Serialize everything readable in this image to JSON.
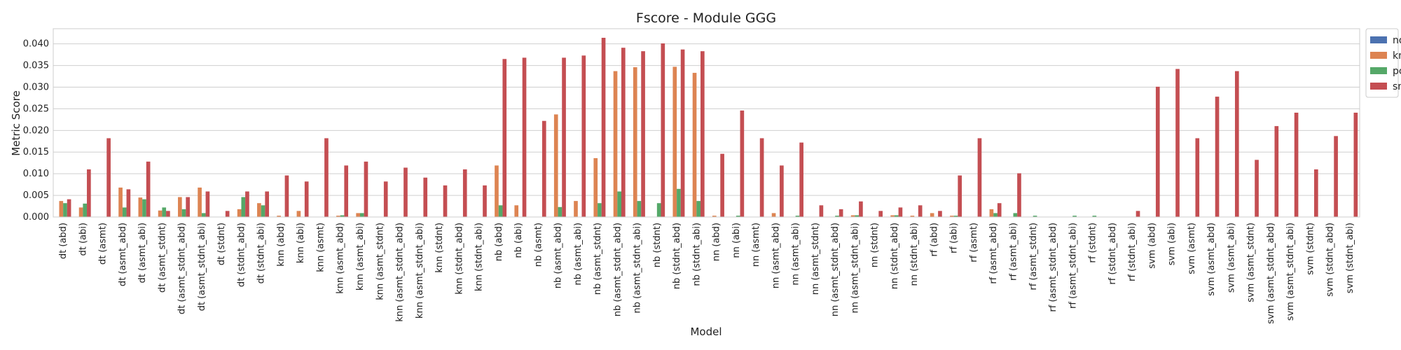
{
  "chart_data": {
    "type": "bar",
    "title": "Fscore - Module GGG",
    "xlabel": "Model",
    "ylabel": "Metric Score",
    "ylim": [
      0,
      0.0435
    ],
    "yticks": [
      "0.000",
      "0.005",
      "0.010",
      "0.015",
      "0.020",
      "0.025",
      "0.030",
      "0.035",
      "0.040"
    ],
    "grid": true,
    "legend_position": "outside-top-right",
    "categories": [
      "dt (abd)",
      "dt (abi)",
      "dt (asmt)",
      "dt (asmt_abd)",
      "dt (asmt_abi)",
      "dt (asmt_stdnt)",
      "dt (asmt_stdnt_abd)",
      "dt (asmt_stdnt_abi)",
      "dt (stdnt)",
      "dt (stdnt_abd)",
      "dt (stdnt_abi)",
      "knn (abd)",
      "knn (abi)",
      "knn (asmt)",
      "knn (asmt_abd)",
      "knn (asmt_abi)",
      "knn (asmt_stdnt)",
      "knn (asmt_stdnt_abd)",
      "knn (asmt_stdnt_abi)",
      "knn (stdnt)",
      "knn (stdnt_abd)",
      "knn (stdnt_abi)",
      "nb (abd)",
      "nb (abi)",
      "nb (asmt)",
      "nb (asmt_abd)",
      "nb (asmt_abi)",
      "nb (asmt_stdnt)",
      "nb (asmt_stdnt_abd)",
      "nb (asmt_stdnt_abi)",
      "nb (stdnt)",
      "nb (stdnt_abd)",
      "nb (stdnt_abi)",
      "nn (abd)",
      "nn (abi)",
      "nn (asmt)",
      "nn (asmt_abd)",
      "nn (asmt_abi)",
      "nn (asmt_stdnt)",
      "nn (asmt_stdnt_abd)",
      "nn (asmt_stdnt_abi)",
      "nn (stdnt)",
      "nn (stdnt_abd)",
      "nn (stdnt_abi)",
      "rf (abd)",
      "rf (abi)",
      "rf (asmt)",
      "rf (asmt_abd)",
      "rf (asmt_abi)",
      "rf (asmt_stdnt)",
      "rf (asmt_stdnt_abd)",
      "rf (asmt_stdnt_abi)",
      "rf (stdnt)",
      "rf (stdnt_abd)",
      "rf (stdnt_abi)",
      "svm (abd)",
      "svm (abi)",
      "svm (asmt)",
      "svm (asmt_abd)",
      "svm (asmt_abi)",
      "svm (asmt_stdnt)",
      "svm (asmt_stdnt_abd)",
      "svm (asmt_stdnt_abi)",
      "svm (stdnt)",
      "svm (stdnt_abd)",
      "svm (stdnt_abi)"
    ],
    "series": [
      {
        "name": "none",
        "color": "#4c72b0",
        "values": [
          0.0,
          0.0,
          0.0,
          0.0,
          0.0,
          0.0,
          0.0,
          0.0,
          0.0,
          0.0,
          0.0,
          0.0,
          0.0,
          0.0,
          0.0,
          0.0,
          0.0,
          0.0,
          0.0,
          0.0,
          0.0,
          0.0,
          0.0,
          0.0,
          0.0,
          0.0,
          0.0,
          0.0,
          0.0,
          0.0,
          0.0,
          0.0,
          0.0,
          0.0,
          0.0,
          0.0,
          0.0,
          0.0,
          0.0,
          0.0,
          0.0,
          0.0,
          0.0,
          0.0,
          0.0,
          0.0,
          0.0,
          0.0,
          0.0,
          0.0,
          0.0,
          0.0,
          0.0,
          0.0,
          0.0,
          0.0,
          0.0,
          0.0,
          0.0,
          0.0,
          0.0,
          0.0,
          0.0,
          0.0,
          0.0,
          0.0
        ]
      },
      {
        "name": "kmeans",
        "color": "#dd8452",
        "values": [
          0.0037,
          0.0022,
          0.0,
          0.0068,
          0.0045,
          0.0015,
          0.0046,
          0.0068,
          0.0,
          0.0018,
          0.0032,
          0.0003,
          0.0014,
          0.0,
          0.0003,
          0.0009,
          0.0,
          0.0,
          0.0,
          0.0,
          0.0,
          0.0,
          0.0119,
          0.0027,
          0.0,
          0.0237,
          0.0037,
          0.0136,
          0.0337,
          0.0346,
          0.0,
          0.0347,
          0.0333,
          0.0003,
          0.0,
          0.0,
          0.0009,
          0.0,
          0.0,
          0.0,
          0.0004,
          0.0,
          0.0004,
          0.0003,
          0.0009,
          0.0003,
          0.0,
          0.0018,
          0.0,
          0.0,
          0.0,
          0.0,
          0.0,
          0.0,
          0.0,
          0.0,
          0.0,
          0.0,
          0.0,
          0.0,
          0.0,
          0.0,
          0.0,
          0.0,
          0.0,
          0.0
        ]
      },
      {
        "name": "pca",
        "color": "#55a868",
        "values": [
          0.0032,
          0.0031,
          0.0,
          0.0022,
          0.0041,
          0.0022,
          0.0018,
          0.0009,
          0.0,
          0.0046,
          0.0027,
          0.0,
          0.0,
          0.0,
          0.0004,
          0.0009,
          0.0,
          0.0,
          0.0,
          0.0,
          0.0,
          0.0,
          0.0027,
          0.0,
          0.0,
          0.0023,
          0.0,
          0.0032,
          0.0059,
          0.0037,
          0.0032,
          0.0065,
          0.0037,
          0.0,
          0.0003,
          0.0,
          0.0,
          0.0003,
          0.0,
          0.0003,
          0.0004,
          0.0,
          0.0004,
          0.0,
          0.0,
          0.0003,
          0.0,
          0.0009,
          0.0009,
          0.0003,
          0.0,
          0.0003,
          0.0003,
          0.0,
          0.0,
          0.0,
          0.0,
          0.0,
          0.0,
          0.0,
          0.0,
          0.0,
          0.0,
          0.0,
          0.0,
          0.0
        ]
      },
      {
        "name": "smote",
        "color": "#c44e52",
        "values": [
          0.0041,
          0.011,
          0.0182,
          0.0064,
          0.0128,
          0.0014,
          0.0046,
          0.0059,
          0.0014,
          0.0059,
          0.0059,
          0.0096,
          0.0082,
          0.0182,
          0.0119,
          0.0128,
          0.0082,
          0.0114,
          0.0091,
          0.0073,
          0.011,
          0.0073,
          0.0365,
          0.0368,
          0.0222,
          0.0368,
          0.0373,
          0.0414,
          0.0391,
          0.0383,
          0.0401,
          0.0387,
          0.0383,
          0.0146,
          0.0246,
          0.0182,
          0.0119,
          0.0172,
          0.0027,
          0.0018,
          0.0036,
          0.0014,
          0.0022,
          0.0027,
          0.0014,
          0.0096,
          0.0182,
          0.0032,
          0.0101,
          0.0,
          0.0,
          0.0,
          0.0,
          0.0,
          0.0014,
          0.0301,
          0.0342,
          0.0182,
          0.0278,
          0.0337,
          0.0132,
          0.021,
          0.0241,
          0.011,
          0.0187,
          0.0241
        ]
      }
    ]
  }
}
